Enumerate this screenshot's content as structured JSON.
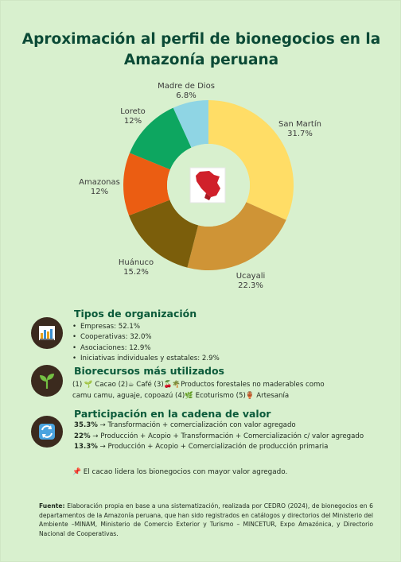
{
  "title_lines": [
    "Aproximación al perfil de bionegocios en la",
    "Amazonía peruana"
  ],
  "chart_data": {
    "type": "pie",
    "variant": "donut",
    "categories": [
      "San Martín",
      "Ucayali",
      "Huánuco",
      "Amazonas",
      "Loreto",
      "Madre de Dios"
    ],
    "values": [
      31.7,
      22.3,
      15.2,
      12,
      12,
      6.8
    ],
    "value_labels": [
      "31.7%",
      "22.3%",
      "15.2%",
      "12%",
      "12%",
      "6.8%"
    ],
    "colors": [
      "#ffdd66",
      "#cf9436",
      "#7b5e0b",
      "#eb5d12",
      "#0da660",
      "#8fd5e4"
    ],
    "center_icon": "peru-map-icon"
  },
  "org": {
    "heading": "Tipos de organización",
    "icon": "factory-icon",
    "items": [
      "Empresas: 52.1%",
      "Cooperativas: 32.0%",
      "Asociaciones: 12.9%",
      "Iniciativas individuales y estatales: 2.9%"
    ]
  },
  "bio": {
    "heading": "Biorecursos más utilizados",
    "icon": "sprout-icon",
    "line1": "(1) 🌱 Cacao (2)☕ Café  (3)🍒🌴Productos forestales no maderables como",
    "line2": "camu camu, aguaje, copoazú  (4)🌿 Ecoturismo (5)🏺 Artesanía"
  },
  "chain": {
    "heading": "Participación en la cadena de valor",
    "icon": "cycle-arrows-icon",
    "rows": [
      {
        "pct": "35.3%",
        "text": " → Transformación + comercialización con valor agregado"
      },
      {
        "pct": "22%",
        "text": " → Producción + Acopio + Transformación + Comercialización c/ valor agregado"
      },
      {
        "pct": "13.3%",
        "text": " →  Producción + Acopio + Comercialización de producción primaria"
      }
    ]
  },
  "note": "📌 El cacao lidera los bionegocios con mayor valor agregado.",
  "source": {
    "label": "Fuente:",
    "text": " Elaboración propia en base a una sistematización, realizada por CEDRO (2024), de bionegocios en 6 departamentos de la Amazonía peruana, que han sido registrados en catálogos y directorios del Ministerio del Ambiente –MINAM, Ministerio de Comercio Exterior y Turismo – MINCETUR, Expo Amazónica, y Directorio Nacional de Cooperativas."
  }
}
